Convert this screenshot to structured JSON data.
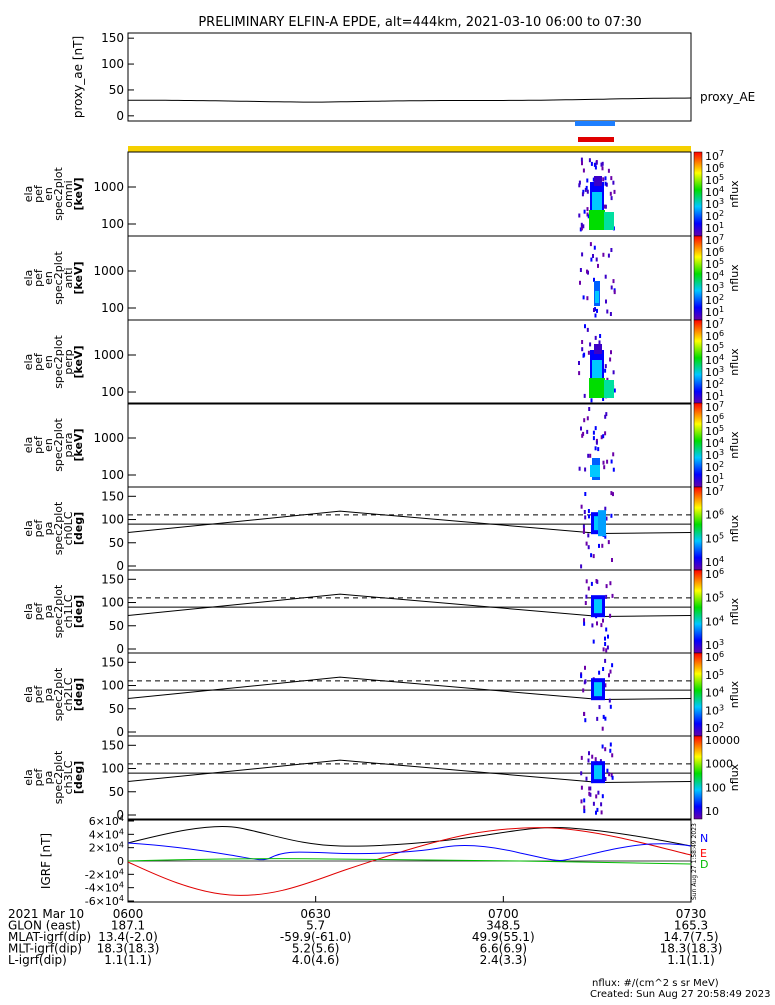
{
  "title": "PRELIMINARY ELFIN-A EPDE, alt=444km, 2021-03-10 06:00 to 07:30",
  "ae_panel": {
    "ylabel": "proxy_ae [nT]",
    "series_label": "proxy_AE",
    "y_ticks": [
      "0",
      "50",
      "100",
      "150"
    ]
  },
  "spec_panels": [
    {
      "ylabel_lines": [
        "ela",
        "pef",
        "en",
        "spec2plot",
        "omni",
        "[keV]"
      ],
      "cb_ticks": [
        "10^7",
        "10^6",
        "10^5",
        "10^4",
        "10^3",
        "10^2",
        "10^1"
      ],
      "cb_label": "nflux"
    },
    {
      "ylabel_lines": [
        "ela",
        "pef",
        "en",
        "spec2plot",
        "anti",
        "[keV]"
      ],
      "cb_ticks": [
        "10^7",
        "10^6",
        "10^5",
        "10^4",
        "10^3",
        "10^2",
        "10^1"
      ],
      "cb_label": "nflux"
    },
    {
      "ylabel_lines": [
        "ela",
        "pef",
        "en",
        "spec2plot",
        "perp",
        "[keV]"
      ],
      "cb_ticks": [
        "10^7",
        "10^6",
        "10^5",
        "10^4",
        "10^3",
        "10^2",
        "10^1"
      ],
      "cb_label": "nflux"
    },
    {
      "ylabel_lines": [
        "ela",
        "pef",
        "en",
        "spec2plot",
        "para",
        "[keV]"
      ],
      "cb_ticks": [
        "10^7",
        "10^6",
        "10^5",
        "10^4",
        "10^3",
        "10^2",
        "10^1"
      ],
      "cb_label": "nflux"
    }
  ],
  "energy_ticks": [
    "100",
    "1000"
  ],
  "pa_panels": [
    {
      "ylabel_lines": [
        "ela",
        "pef",
        "pa",
        "spec2plot",
        "ch0LC",
        "[deg]"
      ],
      "cb_ticks": [
        "10^7",
        "10^6",
        "10^5",
        "10^4"
      ],
      "cb_label": "nflux"
    },
    {
      "ylabel_lines": [
        "ela",
        "pef",
        "pa",
        "spec2plot",
        "ch1LC",
        "[deg]"
      ],
      "cb_ticks": [
        "10^6",
        "10^5",
        "10^4",
        "10^3"
      ],
      "cb_label": "nflux"
    },
    {
      "ylabel_lines": [
        "ela",
        "pef",
        "pa",
        "spec2plot",
        "ch2LC",
        "[deg]"
      ],
      "cb_ticks": [
        "10^6",
        "10^5",
        "10^4",
        "10^3",
        "10^2"
      ],
      "cb_label": "nflux"
    },
    {
      "ylabel_lines": [
        "ela",
        "pef",
        "pa",
        "spec2plot",
        "ch3LC",
        "[deg]"
      ],
      "cb_ticks": [
        "10000",
        "1000",
        "100",
        "10"
      ],
      "cb_label": "nflux"
    }
  ],
  "pa_ticks": [
    "0",
    "50",
    "100",
    "150"
  ],
  "igrf_panel": {
    "ylabel": "IGRF [nT]",
    "y_ticks": [
      "-6×10^4",
      "-4×10^4",
      "-2×10^4",
      "0",
      "2×10^4",
      "4×10^4",
      "6×10^4"
    ],
    "legend": [
      {
        "label": "N",
        "color": "#0000ff"
      },
      {
        "label": "E",
        "color": "#ff0000"
      },
      {
        "label": "D",
        "color": "#00bb00"
      }
    ],
    "stamp": "Sun Aug 27 1:58:49 2023"
  },
  "footer": {
    "rows": [
      {
        "label": "2021 Mar 10",
        "values": [
          "0600",
          "0630",
          "0700",
          "0730"
        ]
      },
      {
        "label": "GLON (east)",
        "values": [
          "187.1",
          "5.7",
          "348.5",
          "165.3"
        ]
      },
      {
        "label": "MLAT-igrf(dip)",
        "values": [
          "13.4(-2.0)",
          "-59.9(-61.0)",
          "49.9(55.1)",
          "14.7(7.5)"
        ]
      },
      {
        "label": "MLT-igrf(dip)",
        "values": [
          "18.3(18.3)",
          "5.2(5.6)",
          "6.6(6.9)",
          "18.3(18.3)"
        ]
      },
      {
        "label": "L-igrf(dip)",
        "values": [
          "1.1(1.1)",
          "4.0(4.6)",
          "2.4(3.3)",
          "1.1(1.1)"
        ]
      }
    ],
    "units_note": "nflux: #/(cm^2 s sr MeV)",
    "created": "Created: Sun Aug 27 20:58:49 2023"
  },
  "colors": {
    "orbit_bar": "#f5d000",
    "blue_bar": "#1e7fff",
    "red_bar": "#e00000"
  },
  "chart_data": [
    {
      "type": "line",
      "x": [
        "0600",
        "0630",
        "0700",
        "0730"
      ],
      "series": [
        {
          "name": "proxy_AE",
          "values": [
            30,
            27,
            30,
            34
          ]
        }
      ],
      "ylim": [
        0,
        150
      ]
    },
    {
      "type": "line",
      "x": [
        "0600",
        "0630",
        "0700",
        "0730"
      ],
      "series": [
        {
          "name": "N",
          "values": [
            30000,
            15000,
            25000,
            30000
          ]
        },
        {
          "name": "E",
          "values": [
            0,
            -40000,
            45000,
            10000
          ]
        },
        {
          "name": "D",
          "values": [
            1000,
            2000,
            500,
            1000
          ]
        }
      ],
      "ylim": [
        -60000,
        60000
      ]
    }
  ]
}
